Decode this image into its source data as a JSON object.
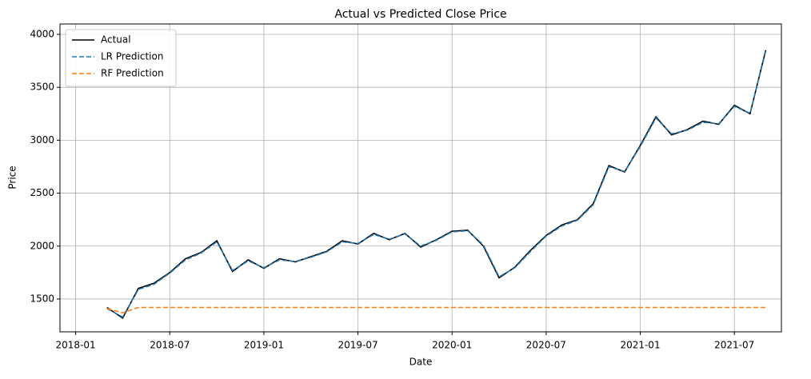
{
  "chart_data": {
    "type": "line",
    "title": "Actual vs Predicted Close Price",
    "xlabel": "Date",
    "ylabel": "Price",
    "x": [
      "2018-03",
      "2018-04",
      "2018-05",
      "2018-06",
      "2018-07",
      "2018-08",
      "2018-09",
      "2018-10",
      "2018-11",
      "2018-12",
      "2019-01",
      "2019-02",
      "2019-03",
      "2019-04",
      "2019-05",
      "2019-06",
      "2019-07",
      "2019-08",
      "2019-09",
      "2019-10",
      "2019-11",
      "2019-12",
      "2020-01",
      "2020-02",
      "2020-03",
      "2020-04",
      "2020-05",
      "2020-06",
      "2020-07",
      "2020-08",
      "2020-09",
      "2020-10",
      "2020-11",
      "2020-12",
      "2021-01",
      "2021-02",
      "2021-03",
      "2021-04",
      "2021-05",
      "2021-06",
      "2021-07",
      "2021-08",
      "2021-09"
    ],
    "series": [
      {
        "name": "Actual",
        "color": "#000000",
        "dash": false,
        "values": [
          1420,
          1320,
          1600,
          1650,
          1750,
          1880,
          1940,
          2050,
          1760,
          1870,
          1790,
          1880,
          1850,
          1900,
          1950,
          2050,
          2020,
          2120,
          2060,
          2120,
          1990,
          2060,
          2140,
          2150,
          2000,
          1700,
          1800,
          1960,
          2100,
          2200,
          2250,
          2400,
          2760,
          2700,
          2950,
          3220,
          3050,
          3100,
          3180,
          3150,
          3330,
          3250,
          3850
        ]
      },
      {
        "name": "LR Prediction",
        "color": "#1f77b4",
        "dash": true,
        "values": [
          1410,
          1330,
          1590,
          1640,
          1745,
          1870,
          1935,
          2040,
          1770,
          1860,
          1795,
          1870,
          1855,
          1895,
          1945,
          2040,
          2025,
          2110,
          2065,
          2115,
          2000,
          2055,
          2135,
          2145,
          2010,
          1710,
          1795,
          1950,
          2095,
          2190,
          2245,
          2390,
          2750,
          2705,
          2940,
          3210,
          3060,
          3095,
          3170,
          3155,
          3320,
          3255,
          3840
        ]
      },
      {
        "name": "RF Prediction",
        "color": "#ff7f0e",
        "dash": true,
        "values": [
          1410,
          1370,
          1420,
          1420,
          1420,
          1420,
          1420,
          1420,
          1420,
          1420,
          1420,
          1420,
          1420,
          1420,
          1420,
          1420,
          1420,
          1420,
          1420,
          1420,
          1420,
          1420,
          1420,
          1420,
          1420,
          1420,
          1420,
          1420,
          1420,
          1420,
          1420,
          1420,
          1420,
          1420,
          1420,
          1420,
          1420,
          1420,
          1420,
          1420,
          1420,
          1420,
          1420
        ]
      }
    ],
    "xlim": [
      "2017-12",
      "2021-10"
    ],
    "xticks": [
      "2018-01",
      "2018-07",
      "2019-01",
      "2019-07",
      "2020-01",
      "2020-07",
      "2021-01",
      "2021-07"
    ],
    "ylim": [
      1190,
      4098
    ],
    "yticks": [
      1500,
      2000,
      2500,
      3000,
      3500,
      4000
    ],
    "grid": true,
    "legend": "upper-left"
  }
}
